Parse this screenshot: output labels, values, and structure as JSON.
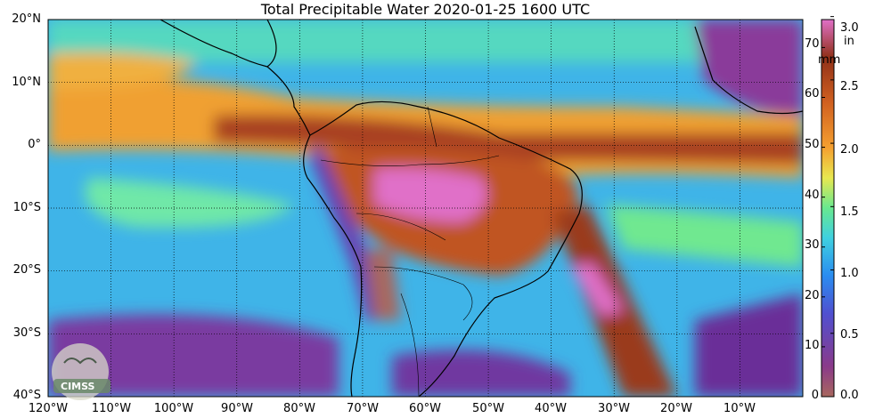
{
  "title": "Total Precipitable Water  2020-01-25 1600 UTC",
  "map": {
    "lon_range": [
      -120,
      0
    ],
    "lat_range": [
      -40,
      20
    ],
    "lat_labels": [
      "20°N",
      "10°N",
      "0°",
      "10°S",
      "20°S",
      "30°S",
      "40°S"
    ],
    "lon_labels": [
      "120°W",
      "110°W",
      "100°W",
      "90°W",
      "80°W",
      "70°W",
      "60°W",
      "50°W",
      "40°W",
      "30°W",
      "20°W",
      "10°W"
    ],
    "grid": true,
    "grid_style": "dotted"
  },
  "colorbar": {
    "left_unit": "mm",
    "right_unit": "in",
    "mm_ticks": [
      "70",
      "60",
      "50",
      "40",
      "30",
      "20",
      "10",
      "0"
    ],
    "in_ticks": [
      "3.0",
      "2.5",
      "2.0",
      "1.5",
      "1.0",
      "0.5",
      "0.0"
    ],
    "colors_low_to_high": [
      "#a8675e",
      "#6b2f8f",
      "#4040c8",
      "#2a8cf0",
      "#3fd0e0",
      "#68e890",
      "#e8e850",
      "#f5a030",
      "#d06020",
      "#903018",
      "#e070c8"
    ]
  },
  "logo": {
    "text": "CIMSS"
  }
}
